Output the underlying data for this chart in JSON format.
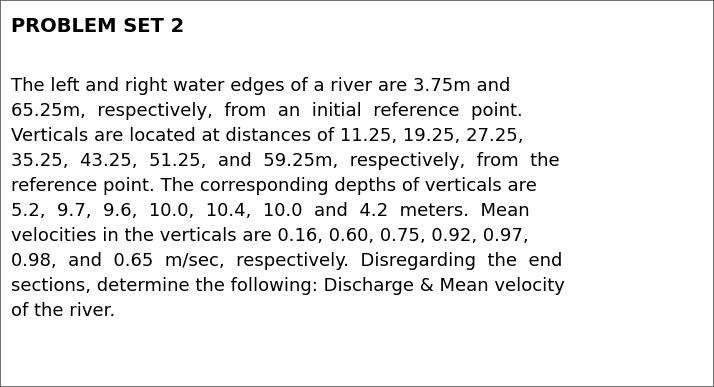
{
  "title": "PROBLEM SET 2",
  "body_text": "The left and right water edges of a river are 3.75m and\n65.25m,  respectively,  from  an  initial  reference  point.\nVerticals are located at distances of 11.25, 19.25, 27.25,\n35.25,  43.25,  51.25,  and  59.25m,  respectively,  from  the\nreference point. The corresponding depths of verticals are\n5.2,  9.7,  9.6,  10.0,  10.4,  10.0  and  4.2  meters.  Mean\nvelocities in the verticals are 0.16, 0.60, 0.75, 0.92, 0.97,\n0.98,  and  0.65  m/sec,  respectively.  Disregarding  the  end\nsections, determine the following: Discharge & Mean velocity\nof the river.",
  "bg_color": "#ffffff",
  "border_color": "#555555",
  "title_fontsize": 14.0,
  "body_fontsize": 13.0,
  "title_color": "#000000",
  "body_color": "#000000",
  "font_family": "Arial Narrow",
  "fig_width": 7.14,
  "fig_height": 3.87,
  "dpi": 100
}
